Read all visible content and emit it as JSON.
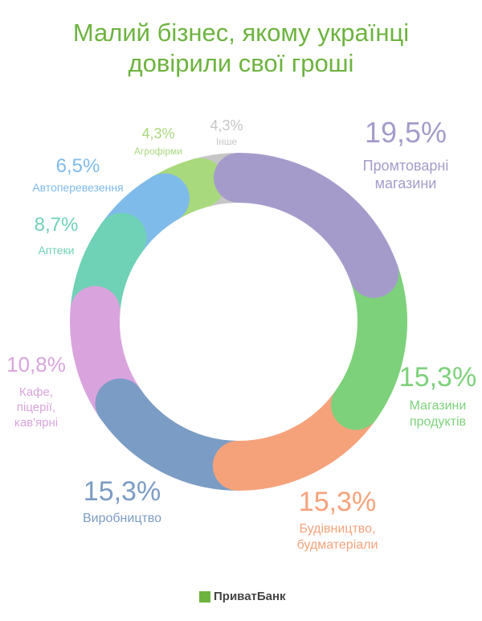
{
  "chart_data": {
    "type": "donut",
    "title": "Малий бізнес, якому українці\nдовірили свої гроші",
    "categories": [
      "Промтоварні\nмагазини",
      "Магазини\nпродуктів",
      "Будівництво,\nбудматеріали",
      "Виробництво",
      "Кафе,\nпіцерії,\nкав'ярні",
      "Аптеки",
      "Автоперевезення",
      "Агрофірми",
      "Інше"
    ],
    "values": [
      19.5,
      15.3,
      15.3,
      15.3,
      10.8,
      8.7,
      6.5,
      4.3,
      4.3
    ],
    "value_labels": [
      "19,5%",
      "15,3%",
      "15,3%",
      "15,3%",
      "10,8%",
      "8,7%",
      "6,5%",
      "4,3%",
      "4,3%"
    ],
    "colors": [
      "#a59bcb",
      "#7dd17a",
      "#f5a27b",
      "#7b9cc4",
      "#d9a4dd",
      "#6fd1b5",
      "#7fbbea",
      "#a8d97c",
      "#c6c6c6"
    ]
  },
  "footer": {
    "logo_text": "ПриватБанк"
  }
}
